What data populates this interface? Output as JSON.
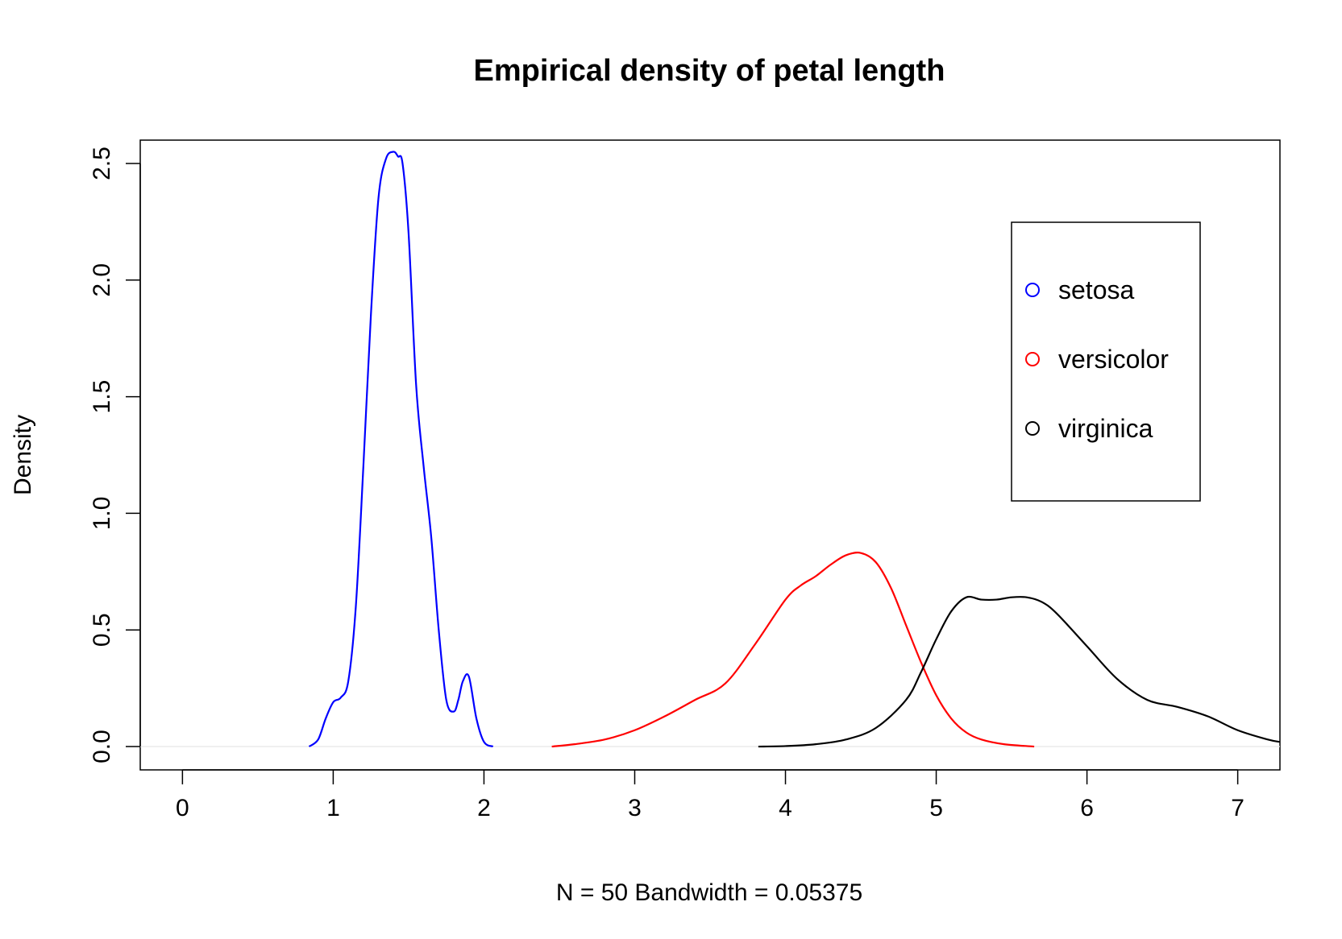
{
  "chart_data": {
    "type": "line",
    "title": "Empirical density of petal length",
    "xlabel": "N = 50   Bandwidth = 0.05375",
    "ylabel": "Density",
    "xlim": [
      -0.28,
      7.28
    ],
    "ylim": [
      -0.1,
      2.6
    ],
    "x_ticks": [
      0,
      1,
      2,
      3,
      4,
      5,
      6,
      7
    ],
    "x_tick_labels": [
      "0",
      "1",
      "2",
      "3",
      "4",
      "5",
      "6",
      "7"
    ],
    "y_ticks": [
      0.0,
      0.5,
      1.0,
      1.5,
      2.0,
      2.5
    ],
    "y_tick_labels": [
      "0.0",
      "0.5",
      "1.0",
      "1.5",
      "2.0",
      "2.5"
    ],
    "legend": {
      "position": "top-right",
      "entries": [
        {
          "label": "setosa",
          "color": "#0000ff"
        },
        {
          "label": "versicolor",
          "color": "#ff0000"
        },
        {
          "label": "virginica",
          "color": "#000000"
        }
      ]
    },
    "series": [
      {
        "name": "setosa",
        "color": "#0000ff",
        "x": [
          0.84,
          0.9,
          0.95,
          1.0,
          1.05,
          1.1,
          1.15,
          1.2,
          1.25,
          1.3,
          1.35,
          1.4,
          1.43,
          1.46,
          1.5,
          1.55,
          1.6,
          1.65,
          1.7,
          1.75,
          1.8,
          1.83,
          1.86,
          1.9,
          1.95,
          2.0,
          2.06
        ],
        "y": [
          0.0,
          0.03,
          0.12,
          0.19,
          0.21,
          0.28,
          0.6,
          1.2,
          1.85,
          2.35,
          2.52,
          2.55,
          2.53,
          2.5,
          2.2,
          1.55,
          1.2,
          0.9,
          0.5,
          0.2,
          0.15,
          0.2,
          0.28,
          0.3,
          0.12,
          0.02,
          0.0
        ]
      },
      {
        "name": "versicolor",
        "color": "#ff0000",
        "x": [
          2.45,
          2.6,
          2.8,
          3.0,
          3.2,
          3.4,
          3.6,
          3.8,
          4.0,
          4.1,
          4.2,
          4.3,
          4.4,
          4.5,
          4.6,
          4.7,
          4.8,
          4.9,
          5.0,
          5.1,
          5.2,
          5.3,
          5.45,
          5.65
        ],
        "y": [
          0.0,
          0.01,
          0.03,
          0.07,
          0.13,
          0.2,
          0.27,
          0.44,
          0.63,
          0.69,
          0.73,
          0.78,
          0.82,
          0.83,
          0.79,
          0.68,
          0.52,
          0.36,
          0.22,
          0.12,
          0.06,
          0.03,
          0.01,
          0.0
        ]
      },
      {
        "name": "virginica",
        "color": "#000000",
        "x": [
          3.82,
          4.0,
          4.2,
          4.4,
          4.6,
          4.8,
          4.9,
          5.0,
          5.1,
          5.2,
          5.3,
          5.4,
          5.5,
          5.6,
          5.7,
          5.8,
          6.0,
          6.2,
          6.4,
          6.6,
          6.8,
          7.0,
          7.2,
          7.28
        ],
        "y": [
          0.0,
          0.002,
          0.01,
          0.03,
          0.08,
          0.2,
          0.32,
          0.46,
          0.58,
          0.64,
          0.63,
          0.63,
          0.64,
          0.64,
          0.62,
          0.57,
          0.43,
          0.29,
          0.2,
          0.17,
          0.13,
          0.07,
          0.03,
          0.02
        ]
      }
    ]
  }
}
